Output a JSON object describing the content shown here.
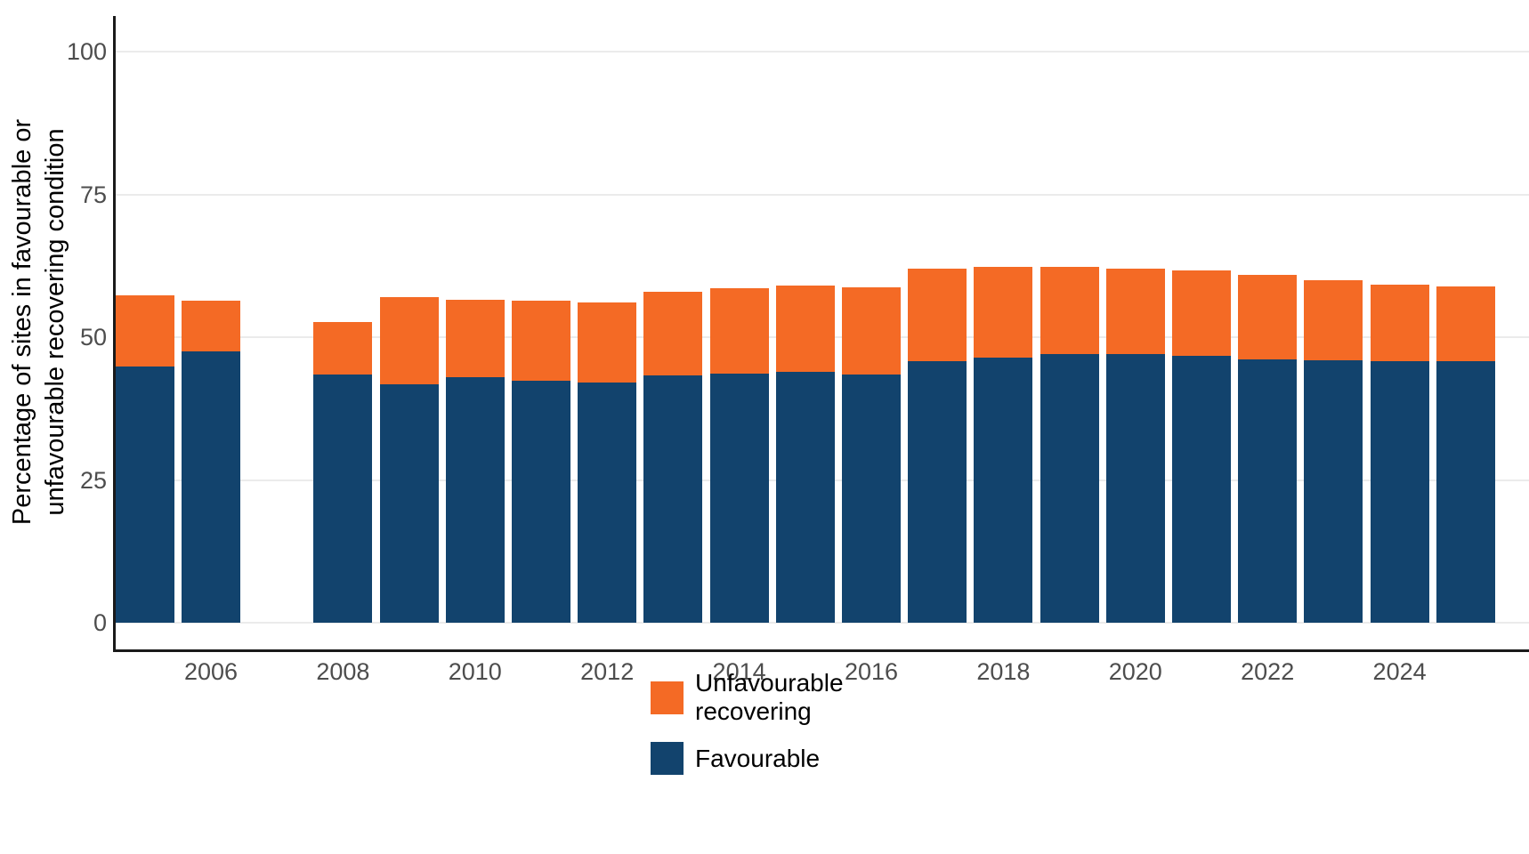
{
  "chart_data": {
    "type": "bar",
    "stacked": true,
    "title": "",
    "xlabel": "",
    "ylabel": "Percentage of sites in favourable or unfavourable recovering condition",
    "ylabel_lines": [
      "Percentage of sites in favourable or",
      "unfavourable recovering condition"
    ],
    "ylim": [
      0,
      100
    ],
    "yticks": [
      0,
      25,
      50,
      75,
      100
    ],
    "xticks": [
      2006,
      2008,
      2010,
      2012,
      2014,
      2016,
      2018,
      2020,
      2022,
      2024
    ],
    "grid": "horizontal",
    "legend_position": "bottom",
    "categories": [
      2005,
      2006,
      2008,
      2009,
      2010,
      2011,
      2012,
      2013,
      2014,
      2015,
      2016,
      2017,
      2018,
      2019,
      2020,
      2021,
      2022,
      2023,
      2024,
      2025
    ],
    "series": [
      {
        "name": "Favourable",
        "color": "#12436D",
        "values": [
          44.9,
          47.5,
          43.5,
          41.7,
          43.0,
          42.4,
          42.0,
          43.3,
          43.6,
          43.9,
          43.5,
          45.8,
          46.4,
          47.0,
          47.0,
          46.7,
          46.1,
          45.9,
          45.8,
          45.8
        ]
      },
      {
        "name": "Unfavourable recovering",
        "color": "#F46A25",
        "values": [
          12.4,
          8.9,
          9.1,
          15.3,
          13.5,
          14.0,
          14.1,
          14.6,
          15.0,
          15.1,
          15.3,
          16.2,
          15.9,
          15.3,
          15.0,
          15.0,
          14.8,
          14.1,
          13.4,
          13.1
        ]
      }
    ]
  },
  "legend": {
    "items": [
      {
        "label": "Unfavourable recovering",
        "color": "#F46A25"
      },
      {
        "label": "Favourable",
        "color": "#12436D"
      }
    ]
  },
  "colors": {
    "favourable": "#12436D",
    "unfavourable_recovering": "#F46A25",
    "gridline": "#ebebeb",
    "axis_line": "#1a1a1a",
    "tick_text": "#4d4d4d",
    "background": "#ffffff"
  }
}
